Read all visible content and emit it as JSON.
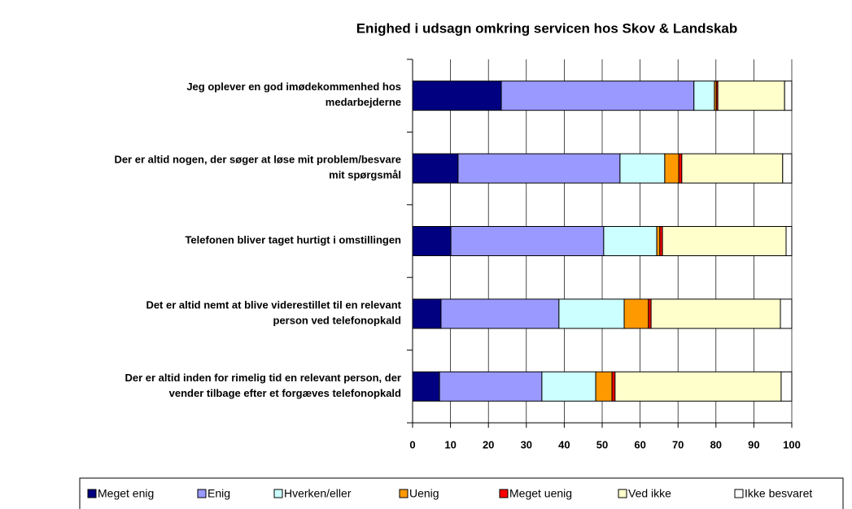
{
  "chart_data": {
    "type": "stacked-barh",
    "title": "Enighed i udsagn omkring servicen hos Skov & Landskab",
    "categories": [
      [
        "Jeg oplever en god imødekommenhed hos",
        "medarbejderne"
      ],
      [
        "Der er altid nogen, der søger at løse mit problem/besvare",
        "mit spørgsmål"
      ],
      [
        "Telefonen bliver taget hurtigt i omstillingen"
      ],
      [
        "Det er altid nemt at blive viderestillet til en relevant",
        "person ved telefonopkald"
      ],
      [
        "Der er altid inden for rimelig tid en relevant person, der",
        "vender tilbage efter et forgæves telefonopkald"
      ]
    ],
    "series": [
      {
        "name": "Meget enig",
        "color": "#000080",
        "values": [
          23.4,
          12.0,
          10.1,
          7.5,
          7.1
        ]
      },
      {
        "name": "Enig",
        "color": "#9999ff",
        "values": [
          50.8,
          42.7,
          40.3,
          31.1,
          27.0
        ]
      },
      {
        "name": "Hverken/eller",
        "color": "#ccffff",
        "values": [
          5.4,
          11.8,
          14.0,
          17.2,
          14.2
        ]
      },
      {
        "name": "Uenig",
        "color": "#ff9900",
        "values": [
          0.5,
          3.7,
          0.8,
          6.4,
          4.3
        ]
      },
      {
        "name": "Meget uenig",
        "color": "#ff0000",
        "values": [
          0.4,
          0.8,
          0.7,
          0.7,
          0.8
        ]
      },
      {
        "name": "Ved ikke",
        "color": "#ffffcc",
        "values": [
          17.6,
          26.6,
          32.6,
          34.1,
          43.8
        ]
      },
      {
        "name": "Ikke besvaret",
        "color": "#ffffff",
        "values": [
          1.9,
          2.4,
          1.5,
          3.0,
          2.8
        ]
      }
    ],
    "xlim": [
      0,
      100
    ],
    "xticks": [
      0,
      10,
      20,
      30,
      40,
      50,
      60,
      70,
      80,
      90,
      100
    ],
    "grid": true,
    "legend": "bottom"
  }
}
